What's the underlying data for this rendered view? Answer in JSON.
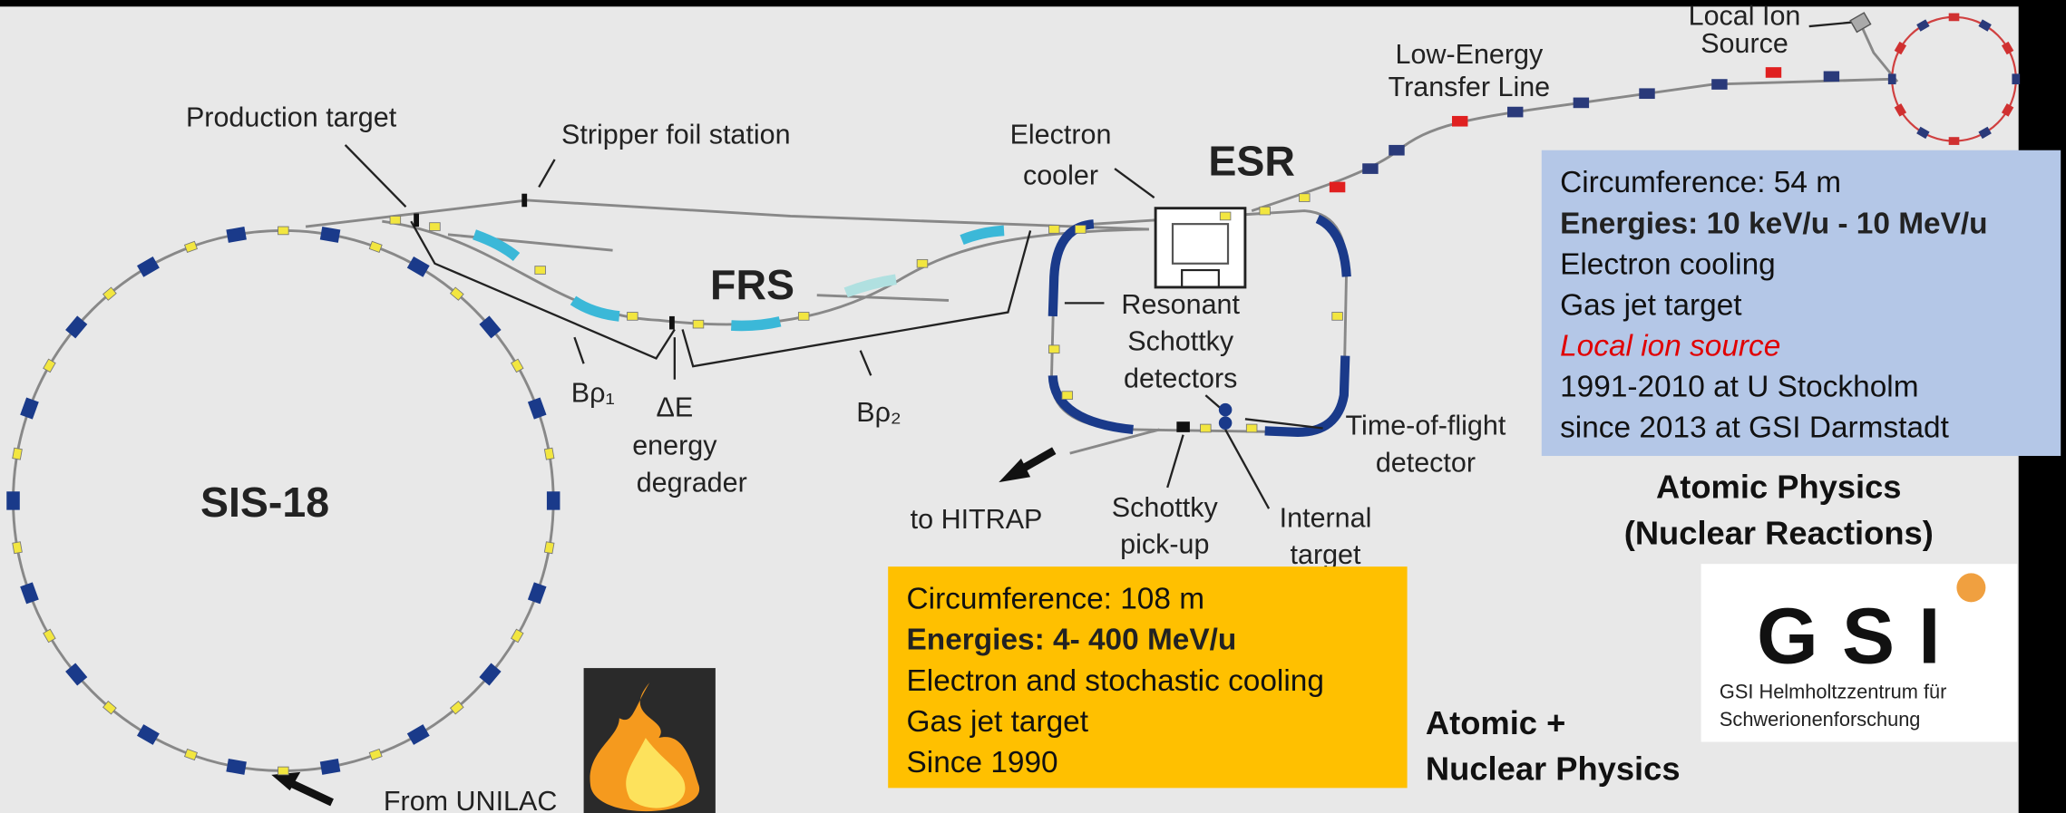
{
  "labels": {
    "production_target": "Production target",
    "stripper": "Stripper foil station",
    "electron_cooler": [
      "Electron",
      "cooler"
    ],
    "esr": "ESR",
    "frs": "FRS",
    "sis": "SIS-18",
    "transfer_line": [
      "Low-Energy",
      "Transfer Line"
    ],
    "local_ion_source": [
      "Local Ion",
      "Source"
    ],
    "resonant": [
      "Resonant",
      "Schottky",
      "detectors"
    ],
    "tof": [
      "Time-of-flight",
      "detector"
    ],
    "brho1": "Bρ₁",
    "degrader": [
      "ΔE",
      "energy",
      "degrader"
    ],
    "brho2": "Bρ₂",
    "hitrap": "to HITRAP",
    "pickup": [
      "Schottky",
      "pick-up"
    ],
    "internal_target": [
      "Internal",
      "target"
    ],
    "unilac": "From UNILAC"
  },
  "esr_box": {
    "lines": [
      {
        "text": "Circumference: 54 m",
        "style": "normal"
      },
      {
        "text": "Energies: 10 keV/u - 10 MeV/u",
        "style": "bold"
      },
      {
        "text": "Electron cooling",
        "style": "normal"
      },
      {
        "text": "Gas jet target",
        "style": "normal"
      },
      {
        "text": "Local ion source",
        "style": "red-italic"
      },
      {
        "text": "1991-2010 at U Stockholm",
        "style": "normal"
      },
      {
        "text": "since 2013 at GSI Darmstadt",
        "style": "normal"
      }
    ]
  },
  "sis_box": {
    "lines": [
      {
        "text": "Circumference: 108 m",
        "style": "normal"
      },
      {
        "text": "Energies:  4- 400 MeV/u",
        "style": "bold"
      },
      {
        "text": "Electron and stochastic cooling",
        "style": "normal"
      },
      {
        "text": "Gas jet target",
        "style": "normal"
      },
      {
        "text": "Since 1990",
        "style": "normal"
      }
    ]
  },
  "headings": {
    "esr_physics": [
      "Atomic Physics",
      "(Nuclear Reactions)"
    ],
    "sis_physics": [
      "Atomic +",
      "Nuclear Physics"
    ]
  },
  "logo": {
    "mark": "GSI",
    "caption": [
      "GSI Helmholtzzentrum für",
      "Schwerionenforschung"
    ]
  }
}
